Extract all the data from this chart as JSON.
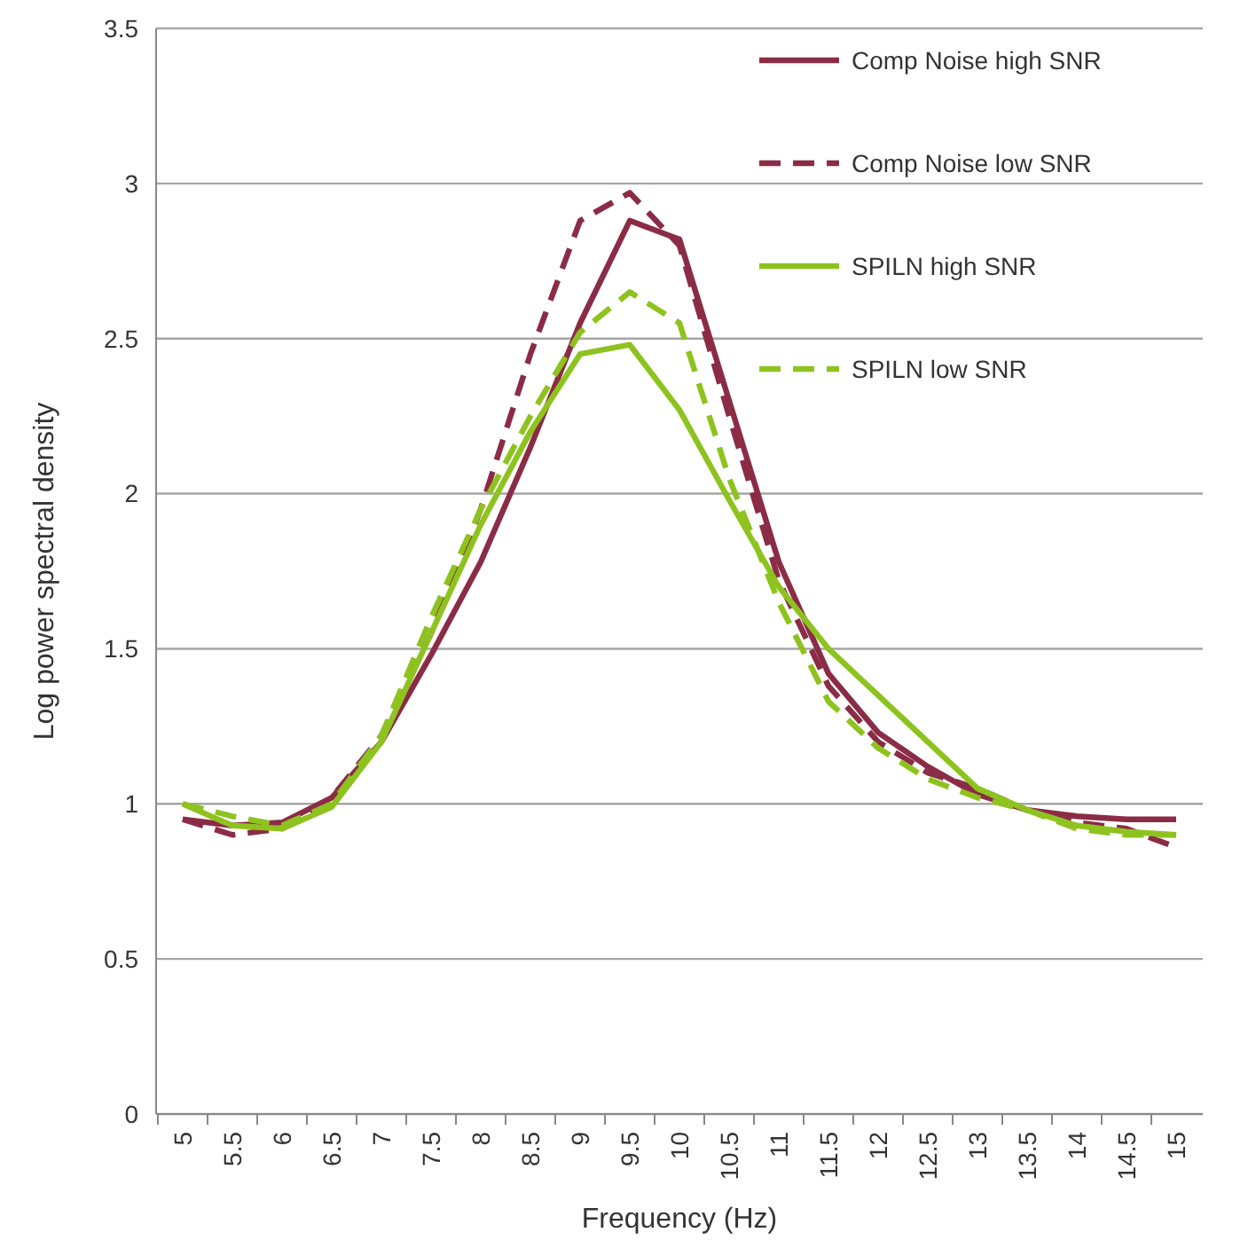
{
  "chart_data": {
    "type": "line",
    "xlabel": "Frequency (Hz)",
    "ylabel": "Log power spectral density",
    "categories": [
      "5",
      "5.5",
      "6",
      "6.5",
      "7",
      "7.5",
      "8",
      "8.5",
      "9",
      "9.5",
      "10",
      "10.5",
      "11",
      "11.5",
      "12",
      "12.5",
      "13",
      "13.5",
      "14",
      "14.5",
      "15"
    ],
    "series": [
      {
        "name": "Comp Noise high SNR",
        "color": "#8b2c46",
        "line_style": "solid",
        "values": [
          0.95,
          0.93,
          0.94,
          1.02,
          1.2,
          1.48,
          1.78,
          2.15,
          2.55,
          2.88,
          2.82,
          2.3,
          1.78,
          1.42,
          1.23,
          1.12,
          1.03,
          0.98,
          0.96,
          0.95,
          0.95
        ]
      },
      {
        "name": "Comp Noise low SNR",
        "color": "#8b2c46",
        "line_style": "dashed",
        "values": [
          0.95,
          0.9,
          0.92,
          1.02,
          1.22,
          1.55,
          1.95,
          2.45,
          2.88,
          2.97,
          2.8,
          2.25,
          1.72,
          1.38,
          1.2,
          1.1,
          1.05,
          0.98,
          0.94,
          0.92,
          0.86
        ]
      },
      {
        "name": "SPILN high SNR",
        "color": "#8ec31f",
        "line_style": "solid",
        "values": [
          1.0,
          0.93,
          0.92,
          0.99,
          1.2,
          1.55,
          1.9,
          2.2,
          2.45,
          2.48,
          2.27,
          1.98,
          1.7,
          1.5,
          1.35,
          1.2,
          1.05,
          0.98,
          0.93,
          0.91,
          0.9
        ]
      },
      {
        "name": "SPILN low SNR",
        "color": "#8ec31f",
        "line_style": "dashed",
        "values": [
          1.0,
          0.96,
          0.93,
          1.0,
          1.22,
          1.6,
          1.95,
          2.25,
          2.52,
          2.65,
          2.55,
          2.05,
          1.65,
          1.33,
          1.18,
          1.08,
          1.02,
          0.98,
          0.92,
          0.9,
          0.9
        ]
      }
    ],
    "ylim": [
      0,
      3.5
    ],
    "yticks": [
      0,
      0.5,
      1,
      1.5,
      2,
      2.5,
      3,
      3.5
    ],
    "grid": "y",
    "legend": "top right",
    "marker": "none"
  }
}
